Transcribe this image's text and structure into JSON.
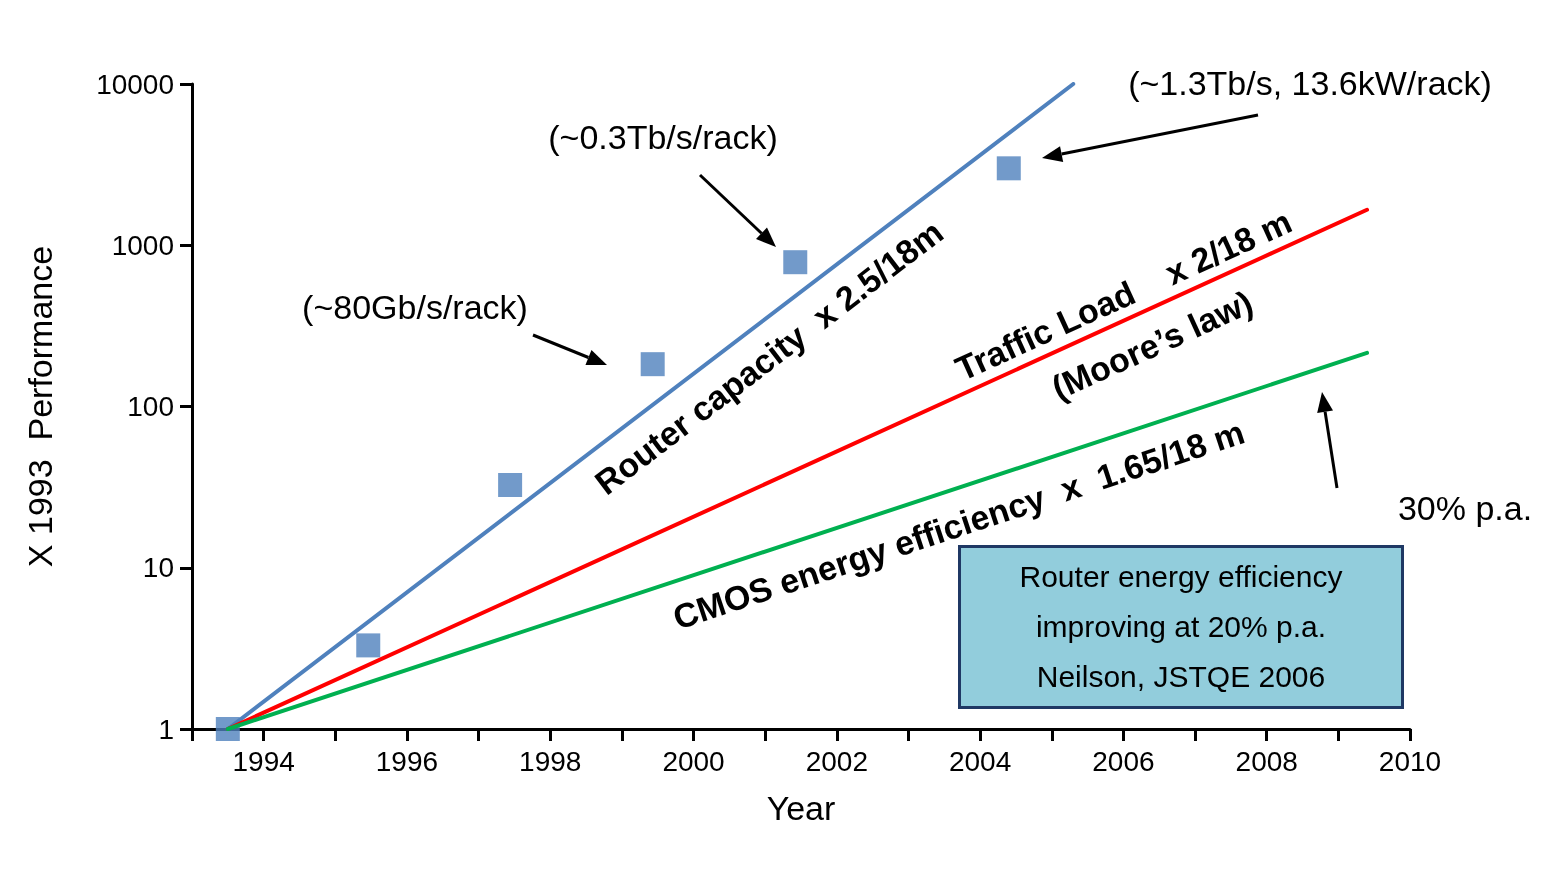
{
  "chart_data": {
    "type": "line",
    "xlabel": "Year",
    "ylabel": "X 1993  Performance",
    "xlim": [
      1993,
      2010
    ],
    "xticks": [
      {
        "value": 1993,
        "label": null
      },
      {
        "value": 1994,
        "label": "1994"
      },
      {
        "value": 1995,
        "label": null
      },
      {
        "value": 1996,
        "label": "1996"
      },
      {
        "value": 1997,
        "label": null
      },
      {
        "value": 1998,
        "label": "1998"
      },
      {
        "value": 1999,
        "label": null
      },
      {
        "value": 2000,
        "label": "2000"
      },
      {
        "value": 2001,
        "label": null
      },
      {
        "value": 2002,
        "label": "2002"
      },
      {
        "value": 2003,
        "label": null
      },
      {
        "value": 2004,
        "label": "2004"
      },
      {
        "value": 2005,
        "label": null
      },
      {
        "value": 2006,
        "label": "2006"
      },
      {
        "value": 2007,
        "label": null
      },
      {
        "value": 2008,
        "label": "2008"
      },
      {
        "value": 2009,
        "label": null
      },
      {
        "value": 2010,
        "label": "2010"
      }
    ],
    "ylim": [
      1,
      10000
    ],
    "yticks": [
      1,
      10,
      100,
      1000,
      10000
    ],
    "log": "y",
    "grid": false,
    "series": [
      {
        "color": "#4f81bd",
        "x": [
          1993.5,
          2005.3
        ],
        "values": [
          1,
          10000
        ],
        "marker": "none"
      },
      {
        "color": "#ff0000",
        "x": [
          1993.5,
          2009.4
        ],
        "values": [
          1,
          1660
        ],
        "marker": "none"
      },
      {
        "color": "#00b050",
        "x": [
          1993.5,
          2009.4
        ],
        "values": [
          1,
          215
        ],
        "marker": "none"
      },
      {
        "type": "scatter",
        "color": "#4f81bd",
        "x": [
          1993.5,
          1995.46,
          1997.44,
          1999.43,
          2001.42,
          2004.4
        ],
        "values": [
          1,
          3.3,
          32.6,
          183,
          785,
          3000
        ],
        "marker": "square"
      }
    ],
    "annotations": [
      {
        "text": "Router capacity  x 2.5/18m",
        "x": 2000.8,
        "y": 302
      },
      {
        "text": "Traffic Load    x 2/18 m",
        "x": 2006,
        "y": 330
      },
      {
        "text": "(Moore’s law)",
        "x": 2006.4,
        "y": 415
      },
      {
        "text": "CMOS energy efficiency  x  1.65/18 m",
        "x": 2003.7,
        "y": 31
      },
      "(~80Gb/s/rack)",
      "(~0.3Tb/s/rack)",
      "(~1.3Tb/s, 13.6kW/rack)",
      "30% p.a.",
      "Router energy efficiency\nimproving at 20% p.a.\nNeilson, JSTQE 2006"
    ]
  }
}
